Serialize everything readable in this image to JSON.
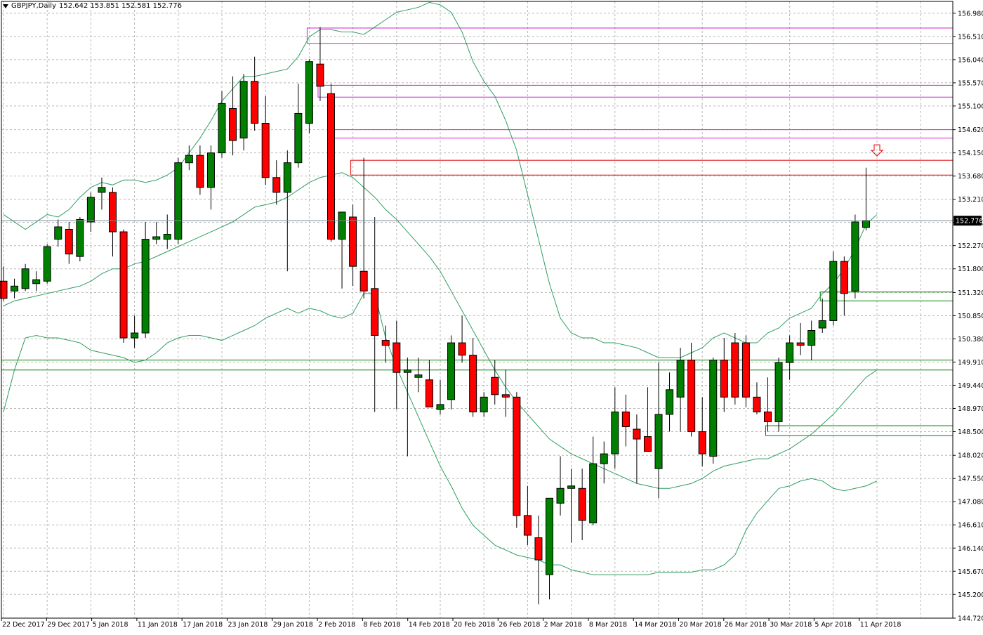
{
  "title": {
    "symbol_tf": "GBPJPY,Daily",
    "ohlc": "152.642 153.851 152.581 152.776"
  },
  "colors": {
    "bull": "#008000",
    "bear": "#ff0000",
    "bands": "#2e9e60",
    "magenta_zone": "#d020d0",
    "red_zone": "#e00000",
    "green_zone": "#008000",
    "grid": "#b8b8b8",
    "price_tag_bg": "#000000",
    "price_tag_fg": "#ffffff"
  },
  "chart_data": {
    "type": "candlestick",
    "symbol": "GBPJPY",
    "timeframe": "Daily",
    "ylim": [
      144.72,
      157.22
    ],
    "y_ticks": [
      "156.980",
      "156.510",
      "156.040",
      "155.570",
      "155.100",
      "154.620",
      "154.150",
      "153.680",
      "153.210",
      "152.740",
      "152.270",
      "151.800",
      "151.320",
      "150.850",
      "150.380",
      "149.910",
      "149.440",
      "148.970",
      "148.500",
      "148.020",
      "147.550",
      "147.080",
      "146.610",
      "146.140",
      "145.670",
      "145.200",
      "144.720"
    ],
    "x_labels": [
      "22 Dec 2017",
      "29 Dec 2017",
      "5 Jan 2018",
      "11 Jan 2018",
      "17 Jan 2018",
      "23 Jan 2018",
      "29 Jan 2018",
      "2 Feb 2018",
      "8 Feb 2018",
      "14 Feb 2018",
      "20 Feb 2018",
      "26 Feb 2018",
      "2 Mar 2018",
      "8 Mar 2018",
      "14 Mar 2018",
      "20 Mar 2018",
      "26 Mar 2018",
      "30 Mar 2018",
      "5 Apr 2018",
      "11 Apr 2018"
    ],
    "current_price": "152.776",
    "candles": [
      {
        "o": 151.55,
        "h": 151.85,
        "l": 151.15,
        "c": 151.2
      },
      {
        "o": 151.35,
        "h": 151.6,
        "l": 151.2,
        "c": 151.45
      },
      {
        "o": 151.4,
        "h": 151.9,
        "l": 151.35,
        "c": 151.8
      },
      {
        "o": 151.5,
        "h": 151.75,
        "l": 151.35,
        "c": 151.58
      },
      {
        "o": 151.55,
        "h": 152.3,
        "l": 151.5,
        "c": 152.25
      },
      {
        "o": 152.4,
        "h": 152.8,
        "l": 152.25,
        "c": 152.65
      },
      {
        "o": 152.6,
        "h": 152.75,
        "l": 151.9,
        "c": 152.1
      },
      {
        "o": 152.05,
        "h": 152.85,
        "l": 151.95,
        "c": 152.8
      },
      {
        "o": 152.75,
        "h": 153.35,
        "l": 152.55,
        "c": 153.25
      },
      {
        "o": 153.35,
        "h": 153.65,
        "l": 153.0,
        "c": 153.45
      },
      {
        "o": 153.35,
        "h": 153.45,
        "l": 152.05,
        "c": 152.55
      },
      {
        "o": 152.55,
        "h": 152.6,
        "l": 150.3,
        "c": 150.4
      },
      {
        "o": 150.4,
        "h": 150.85,
        "l": 150.2,
        "c": 150.5
      },
      {
        "o": 150.5,
        "h": 152.75,
        "l": 150.4,
        "c": 152.4
      },
      {
        "o": 152.4,
        "h": 152.75,
        "l": 152.3,
        "c": 152.45
      },
      {
        "o": 152.4,
        "h": 152.9,
        "l": 152.2,
        "c": 152.5
      },
      {
        "o": 152.4,
        "h": 154.05,
        "l": 152.3,
        "c": 153.95
      },
      {
        "o": 153.95,
        "h": 154.3,
        "l": 153.8,
        "c": 154.1
      },
      {
        "o": 154.1,
        "h": 154.3,
        "l": 153.3,
        "c": 153.45
      },
      {
        "o": 153.45,
        "h": 154.3,
        "l": 153.0,
        "c": 154.15
      },
      {
        "o": 154.15,
        "h": 155.4,
        "l": 154.05,
        "c": 155.15
      },
      {
        "o": 155.05,
        "h": 155.7,
        "l": 154.1,
        "c": 154.4
      },
      {
        "o": 154.45,
        "h": 155.75,
        "l": 154.2,
        "c": 155.6
      },
      {
        "o": 155.6,
        "h": 156.1,
        "l": 154.6,
        "c": 154.75
      },
      {
        "o": 154.75,
        "h": 155.3,
        "l": 153.5,
        "c": 153.65
      },
      {
        "o": 153.65,
        "h": 154.0,
        "l": 153.1,
        "c": 153.35
      },
      {
        "o": 153.35,
        "h": 154.2,
        "l": 151.75,
        "c": 153.95
      },
      {
        "o": 153.95,
        "h": 155.55,
        "l": 153.85,
        "c": 154.95
      },
      {
        "o": 154.75,
        "h": 156.05,
        "l": 154.55,
        "c": 156.0
      },
      {
        "o": 155.95,
        "h": 156.7,
        "l": 155.2,
        "c": 155.5
      },
      {
        "o": 155.35,
        "h": 155.55,
        "l": 152.35,
        "c": 152.4
      },
      {
        "o": 152.4,
        "h": 152.9,
        "l": 151.4,
        "c": 152.95
      },
      {
        "o": 152.85,
        "h": 153.1,
        "l": 151.45,
        "c": 151.85
      },
      {
        "o": 151.75,
        "h": 154.05,
        "l": 151.2,
        "c": 151.35
      },
      {
        "o": 151.4,
        "h": 152.85,
        "l": 148.9,
        "c": 150.45
      },
      {
        "o": 150.35,
        "h": 150.65,
        "l": 149.9,
        "c": 150.25
      },
      {
        "o": 150.3,
        "h": 150.75,
        "l": 148.95,
        "c": 149.7
      },
      {
        "o": 149.7,
        "h": 150.0,
        "l": 148.0,
        "c": 149.75
      },
      {
        "o": 149.6,
        "h": 150.0,
        "l": 149.3,
        "c": 149.65
      },
      {
        "o": 149.55,
        "h": 149.95,
        "l": 149.0,
        "c": 149.0
      },
      {
        "o": 148.95,
        "h": 149.55,
        "l": 148.85,
        "c": 149.05
      },
      {
        "o": 149.15,
        "h": 150.45,
        "l": 148.95,
        "c": 150.3
      },
      {
        "o": 150.3,
        "h": 150.85,
        "l": 149.9,
        "c": 150.05
      },
      {
        "o": 150.05,
        "h": 150.4,
        "l": 148.8,
        "c": 148.9
      },
      {
        "o": 148.9,
        "h": 149.3,
        "l": 148.8,
        "c": 149.2
      },
      {
        "o": 149.6,
        "h": 149.95,
        "l": 149.05,
        "c": 149.25
      },
      {
        "o": 149.25,
        "h": 149.75,
        "l": 148.8,
        "c": 149.2
      },
      {
        "o": 149.2,
        "h": 149.3,
        "l": 146.55,
        "c": 146.8
      },
      {
        "o": 146.8,
        "h": 147.4,
        "l": 146.2,
        "c": 146.4
      },
      {
        "o": 146.35,
        "h": 146.8,
        "l": 145.0,
        "c": 145.9
      },
      {
        "o": 145.6,
        "h": 147.15,
        "l": 145.1,
        "c": 147.15
      },
      {
        "o": 147.05,
        "h": 148.0,
        "l": 146.8,
        "c": 147.35
      },
      {
        "o": 147.35,
        "h": 147.75,
        "l": 146.25,
        "c": 147.4
      },
      {
        "o": 147.35,
        "h": 147.75,
        "l": 146.3,
        "c": 146.7
      },
      {
        "o": 146.65,
        "h": 148.4,
        "l": 146.6,
        "c": 147.85
      },
      {
        "o": 147.85,
        "h": 148.3,
        "l": 147.45,
        "c": 148.05
      },
      {
        "o": 148.05,
        "h": 149.4,
        "l": 147.75,
        "c": 148.9
      },
      {
        "o": 148.9,
        "h": 149.25,
        "l": 148.2,
        "c": 148.6
      },
      {
        "o": 148.55,
        "h": 148.85,
        "l": 147.45,
        "c": 148.35
      },
      {
        "o": 148.4,
        "h": 149.4,
        "l": 148.2,
        "c": 148.1
      },
      {
        "o": 147.75,
        "h": 149.9,
        "l": 147.15,
        "c": 148.85
      },
      {
        "o": 148.85,
        "h": 149.7,
        "l": 148.5,
        "c": 149.35
      },
      {
        "o": 149.2,
        "h": 150.2,
        "l": 148.5,
        "c": 149.95
      },
      {
        "o": 149.95,
        "h": 150.3,
        "l": 148.4,
        "c": 148.5
      },
      {
        "o": 148.5,
        "h": 149.2,
        "l": 147.8,
        "c": 148.05
      },
      {
        "o": 148.0,
        "h": 150.0,
        "l": 147.85,
        "c": 149.95
      },
      {
        "o": 149.95,
        "h": 150.4,
        "l": 148.9,
        "c": 149.2
      },
      {
        "o": 150.3,
        "h": 150.5,
        "l": 149.05,
        "c": 149.2
      },
      {
        "o": 150.3,
        "h": 150.45,
        "l": 149.0,
        "c": 149.2
      },
      {
        "o": 149.2,
        "h": 149.5,
        "l": 148.85,
        "c": 148.9
      },
      {
        "o": 148.9,
        "h": 149.6,
        "l": 148.5,
        "c": 148.7
      },
      {
        "o": 148.7,
        "h": 150.0,
        "l": 148.5,
        "c": 149.9
      },
      {
        "o": 149.9,
        "h": 150.45,
        "l": 149.55,
        "c": 150.3
      },
      {
        "o": 150.3,
        "h": 150.7,
        "l": 150.05,
        "c": 150.25
      },
      {
        "o": 150.25,
        "h": 150.75,
        "l": 149.95,
        "c": 150.55
      },
      {
        "o": 150.6,
        "h": 151.2,
        "l": 150.5,
        "c": 150.75
      },
      {
        "o": 150.75,
        "h": 152.15,
        "l": 150.65,
        "c": 151.95
      },
      {
        "o": 151.95,
        "h": 152.05,
        "l": 150.85,
        "c": 151.3
      },
      {
        "o": 151.35,
        "h": 152.9,
        "l": 151.2,
        "c": 152.75
      },
      {
        "o": 152.64,
        "h": 153.85,
        "l": 152.58,
        "c": 152.78
      }
    ],
    "bollinger": {
      "upper": [
        152.9,
        152.75,
        152.6,
        152.75,
        152.9,
        152.85,
        153.0,
        153.25,
        153.45,
        153.55,
        153.5,
        153.6,
        153.6,
        153.55,
        153.6,
        153.7,
        153.85,
        154.15,
        154.45,
        154.8,
        155.2,
        155.45,
        155.7,
        155.7,
        155.75,
        155.8,
        155.85,
        156.1,
        156.5,
        156.65,
        156.65,
        156.6,
        156.6,
        156.55,
        156.7,
        156.85,
        157.0,
        157.05,
        157.1,
        157.2,
        157.15,
        157.0,
        156.6,
        156.0,
        155.6,
        155.3,
        154.8,
        154.2,
        153.3,
        152.4,
        151.5,
        150.8,
        150.5,
        150.4,
        150.4,
        150.3,
        150.3,
        150.25,
        150.2,
        150.1,
        150.0,
        150.0,
        150.0,
        150.1,
        150.2,
        150.4,
        150.5,
        150.4,
        150.3,
        150.3,
        150.5,
        150.6,
        150.8,
        150.9,
        151.0,
        151.3,
        151.5,
        151.8,
        152.2,
        152.7,
        152.9
      ],
      "middle": [
        151.05,
        151.15,
        151.2,
        151.25,
        151.3,
        151.35,
        151.4,
        151.45,
        151.55,
        151.7,
        151.8,
        151.8,
        151.9,
        151.95,
        152.05,
        152.15,
        152.25,
        152.35,
        152.45,
        152.55,
        152.65,
        152.75,
        152.9,
        153.05,
        153.1,
        153.15,
        153.25,
        153.4,
        153.55,
        153.65,
        153.7,
        153.75,
        153.65,
        153.45,
        153.25,
        153.0,
        152.8,
        152.55,
        152.3,
        152.05,
        151.75,
        151.35,
        150.95,
        150.55,
        150.15,
        149.75,
        149.4,
        149.1,
        148.85,
        148.6,
        148.35,
        148.2,
        148.05,
        147.95,
        147.85,
        147.75,
        147.65,
        147.55,
        147.45,
        147.4,
        147.35,
        147.35,
        147.4,
        147.45,
        147.55,
        147.7,
        147.8,
        147.85,
        147.9,
        147.95,
        147.95,
        148.05,
        148.15,
        148.3,
        148.45,
        148.65,
        148.85,
        149.1,
        149.35,
        149.6,
        149.75
      ],
      "lower": [
        148.9,
        149.75,
        150.4,
        150.45,
        150.4,
        150.4,
        150.35,
        150.3,
        150.15,
        150.1,
        150.05,
        150.0,
        149.9,
        149.95,
        150.1,
        150.3,
        150.4,
        150.45,
        150.45,
        150.4,
        150.35,
        150.45,
        150.55,
        150.65,
        150.8,
        150.9,
        151.0,
        150.9,
        151.0,
        150.95,
        150.85,
        150.8,
        150.9,
        151.3,
        151.3,
        150.4,
        149.8,
        149.3,
        148.8,
        148.3,
        147.8,
        147.4,
        146.95,
        146.6,
        146.4,
        146.2,
        146.1,
        146.0,
        145.95,
        145.9,
        145.8,
        145.8,
        145.7,
        145.65,
        145.6,
        145.6,
        145.6,
        145.6,
        145.6,
        145.6,
        145.65,
        145.65,
        145.65,
        145.65,
        145.7,
        145.7,
        145.8,
        146.0,
        146.5,
        146.85,
        147.1,
        147.35,
        147.4,
        147.5,
        147.55,
        147.5,
        147.35,
        147.3,
        147.35,
        147.4,
        147.5
      ]
    },
    "zones": [
      {
        "color": "magenta",
        "top": 156.68,
        "bottom": 156.37,
        "start": 28
      },
      {
        "color": "magenta",
        "top": 155.52,
        "bottom": 155.28,
        "start": 29
      },
      {
        "color": "magenta",
        "top": 154.62,
        "bottom": 154.45,
        "start": 30
      },
      {
        "color": "red",
        "top": 154.0,
        "bottom": 153.7,
        "start": 32
      },
      {
        "color": "green",
        "top": 151.33,
        "bottom": 151.15,
        "start": 75
      },
      {
        "color": "green",
        "top": 148.62,
        "bottom": 148.42,
        "start": 70
      }
    ],
    "horizontal_lines": [
      149.95,
      149.75
    ],
    "signal_arrow": {
      "index": 80,
      "price": 154.2,
      "direction": "down"
    }
  }
}
